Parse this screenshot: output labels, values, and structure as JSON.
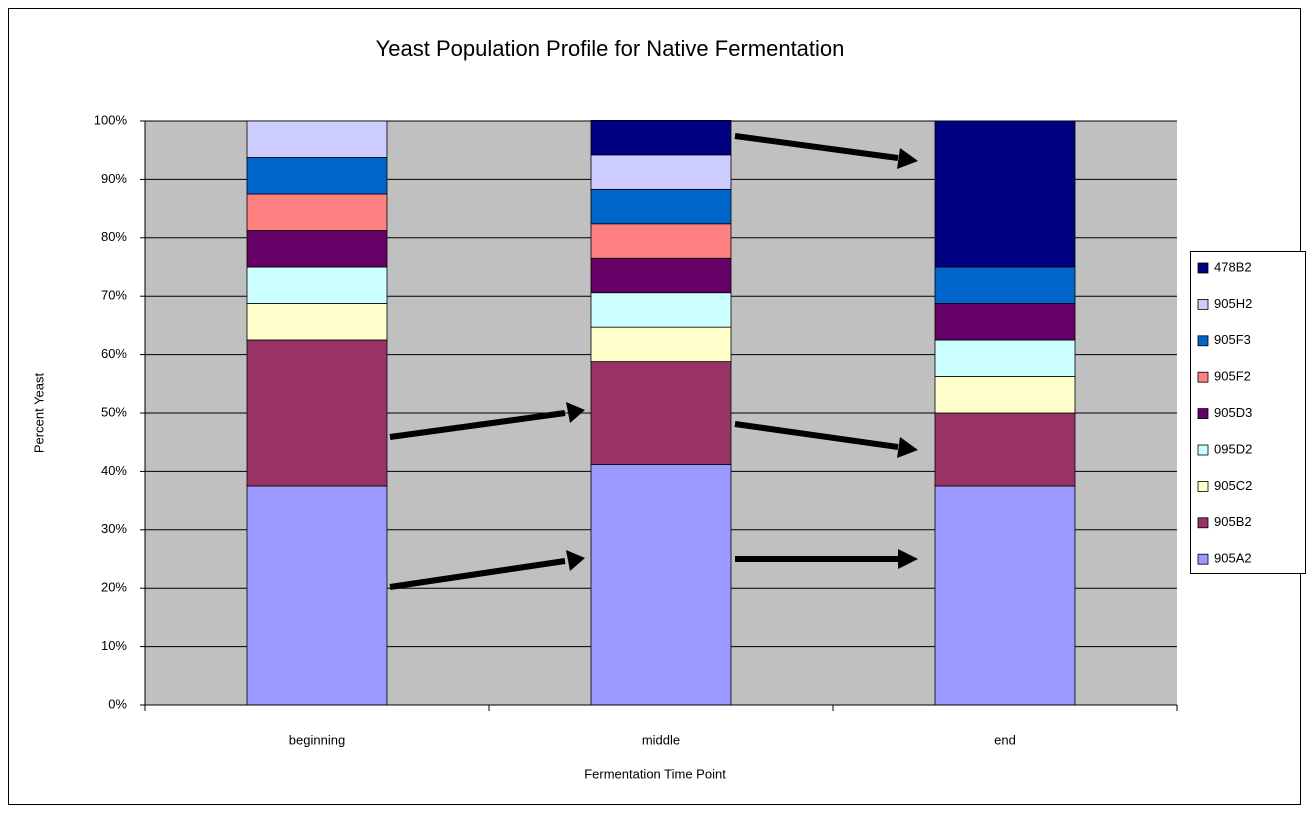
{
  "chart_data": {
    "type": "stacked-bar",
    "title": "Yeast Population Profile for Native Fermentation",
    "x_label": "Fermentation Time Point",
    "y_label": "Percent Yeast",
    "categories": [
      "beginning",
      "middle",
      "end"
    ],
    "series": [
      {
        "name": "905A2",
        "color": "#9999ff",
        "values": [
          37.5,
          41.2,
          37.5
        ]
      },
      {
        "name": "905B2",
        "color": "#993366",
        "values": [
          25,
          17.6,
          12.5
        ]
      },
      {
        "name": "905C2",
        "color": "#ffffcc",
        "values": [
          6.25,
          5.9,
          6.25
        ]
      },
      {
        "name": "095D2",
        "color": "#ccffff",
        "values": [
          6.25,
          5.9,
          6.25
        ]
      },
      {
        "name": "905D3",
        "color": "#660066",
        "values": [
          6.25,
          5.9,
          6.25
        ]
      },
      {
        "name": "905F2",
        "color": "#ff8080",
        "values": [
          6.25,
          5.9,
          0
        ]
      },
      {
        "name": "905F3",
        "color": "#0066cc",
        "values": [
          6.25,
          5.9,
          6.25
        ]
      },
      {
        "name": "905H2",
        "color": "#ccccff",
        "values": [
          6.25,
          5.9,
          0
        ]
      },
      {
        "name": "478B2",
        "color": "#000080",
        "values": [
          0,
          5.9,
          25
        ]
      }
    ],
    "ylim": [
      0,
      100
    ],
    "yticks": [
      {
        "value": 0,
        "label": "0%"
      },
      {
        "value": 10,
        "label": "10%"
      },
      {
        "value": 20,
        "label": "20%"
      },
      {
        "value": 30,
        "label": "30%"
      },
      {
        "value": 40,
        "label": "40%"
      },
      {
        "value": 50,
        "label": "50%"
      },
      {
        "value": 60,
        "label": "60%"
      },
      {
        "value": 70,
        "label": "70%"
      },
      {
        "value": 80,
        "label": "80%"
      },
      {
        "value": 90,
        "label": "90%"
      },
      {
        "value": 100,
        "label": "100%"
      }
    ],
    "grid": true,
    "legend": "right"
  }
}
